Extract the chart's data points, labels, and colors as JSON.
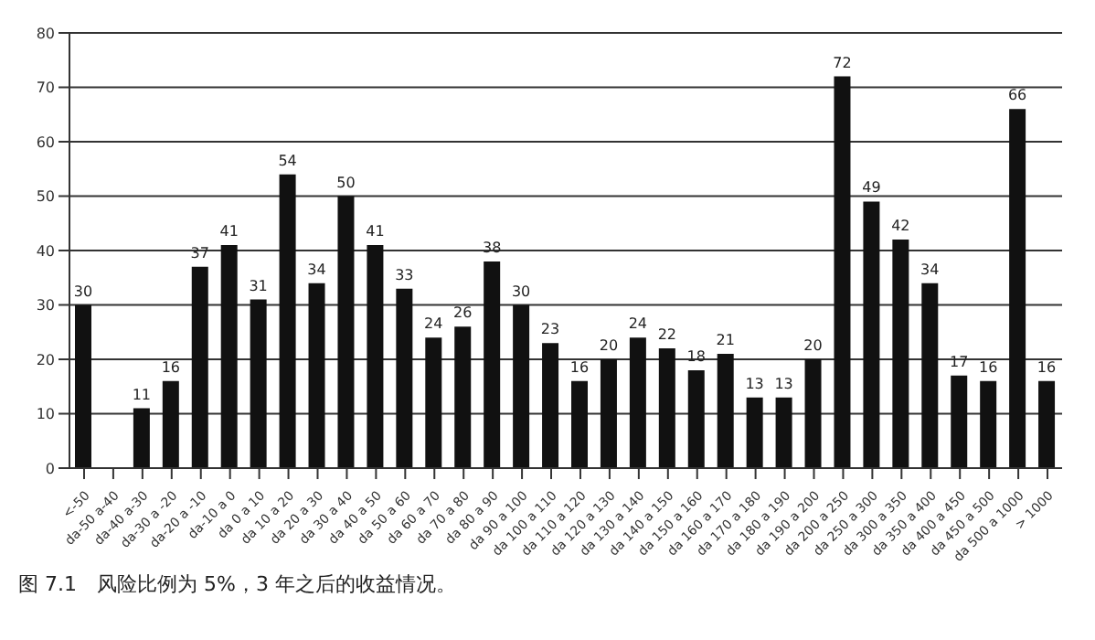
{
  "chart_data": {
    "type": "bar",
    "categories": [
      "<-50",
      "da-50 a-40",
      "da-40 a-30",
      "da-30 a -20",
      "da-20 a -10",
      "da-10 a 0",
      "da 0 a 10",
      "da 10 a 20",
      "da 20 a 30",
      "da 30 a 40",
      "da 40 a 50",
      "da 50 a 60",
      "da 60 a 70",
      "da 70 a 80",
      "da 80 a 90",
      "da 90 a 100",
      "da 100 a 110",
      "da 110 a 120",
      "da 120 a 130",
      "da 130 a 140",
      "da 140 a 150",
      "da 150 a 160",
      "da 160 a 170",
      "da 170 a 180",
      "da 180 a 190",
      "da 190 a 200",
      "da 200 a 250",
      "da 250 a 300",
      "da 300 a 350",
      "da 350 a 400",
      "da 400 a 450",
      "da 450 a 500",
      "da 500 a 1000",
      "> 1000"
    ],
    "values": [
      30,
      null,
      11,
      16,
      37,
      41,
      31,
      54,
      34,
      50,
      41,
      33,
      24,
      26,
      38,
      30,
      23,
      16,
      20,
      24,
      22,
      18,
      21,
      13,
      13,
      20,
      72,
      49,
      42,
      34,
      17,
      16,
      66,
      16
    ],
    "color": "#111111",
    "ylim": [
      0,
      80
    ],
    "yticks": [
      0,
      10,
      20,
      30,
      40,
      50,
      60,
      70,
      80
    ],
    "grid": "y",
    "data_labels": true,
    "annotations": [
      "图 7.1　风险比例为 5%，3 年之后的收益情况。"
    ]
  }
}
